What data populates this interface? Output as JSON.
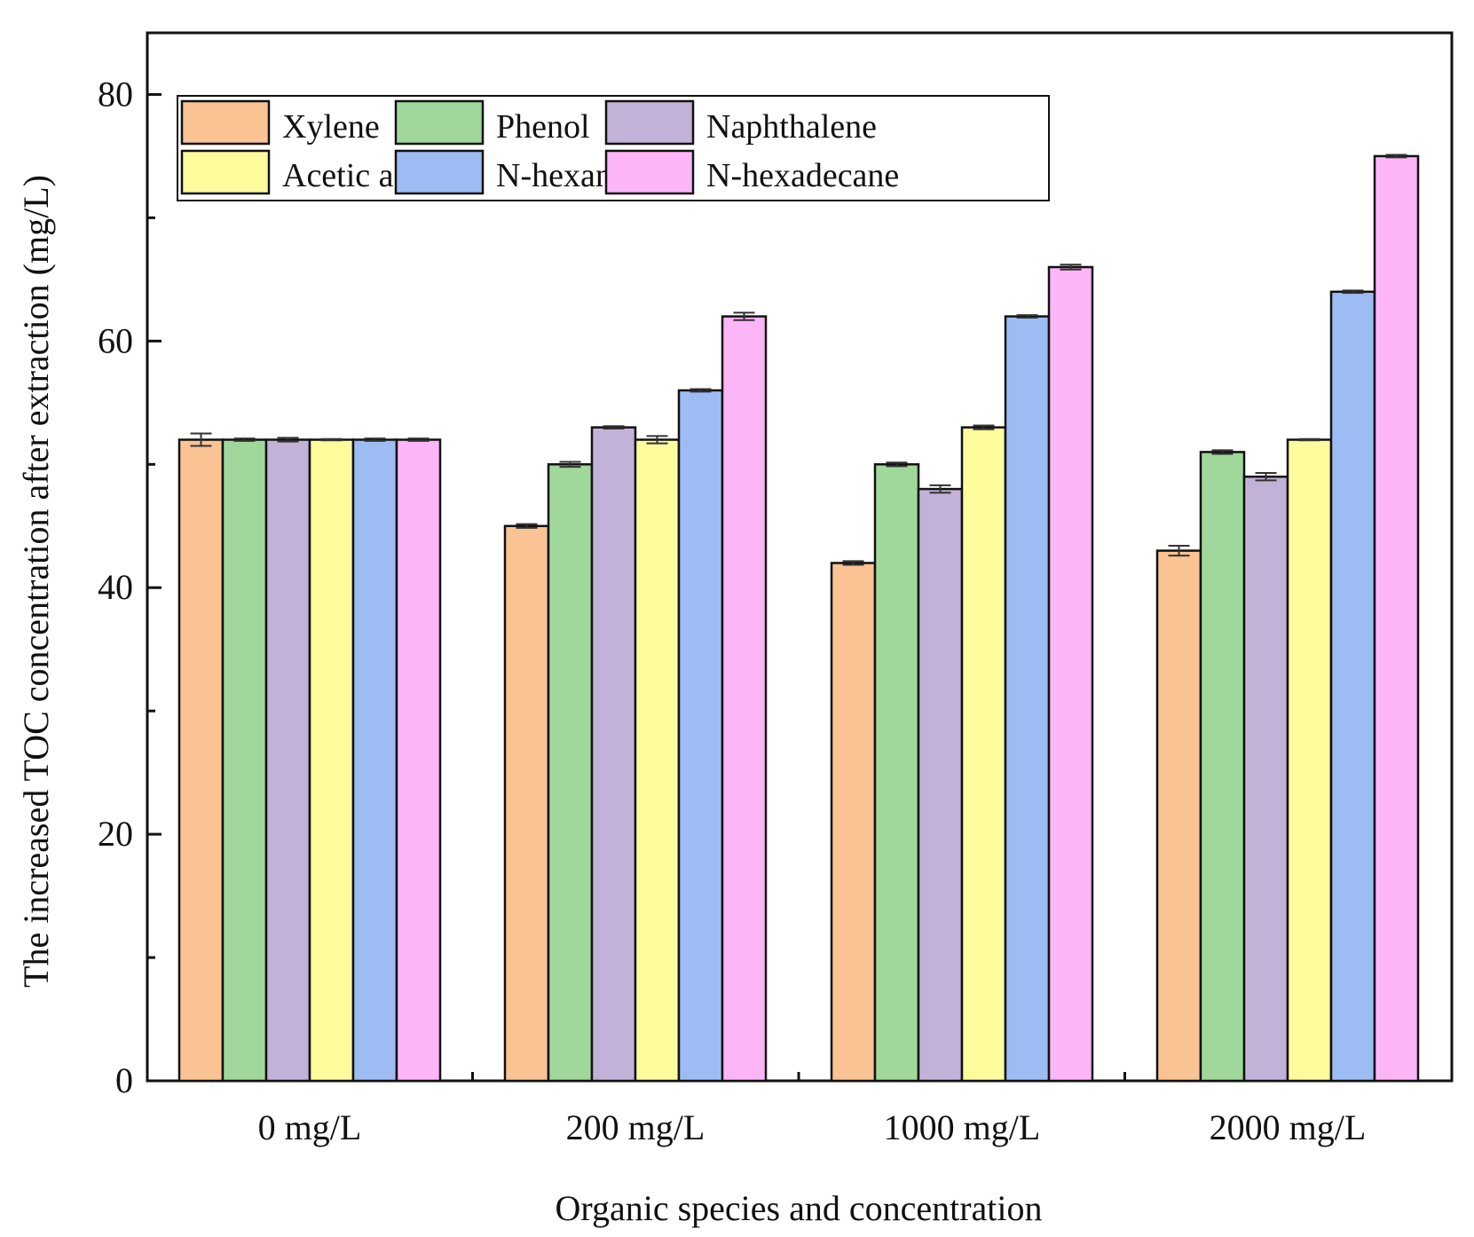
{
  "chart_data": {
    "type": "bar",
    "title": "",
    "xlabel": "Organic species and concentration",
    "ylabel": "The increased TOC concentration after extraction (mg/L)",
    "categories": [
      "0 mg/L",
      "200 mg/L",
      "1000 mg/L",
      "2000 mg/L"
    ],
    "ylim": [
      0,
      85
    ],
    "yticks": [
      0,
      20,
      40,
      60,
      80
    ],
    "grid": false,
    "legend_position": "top-left",
    "error_bars": true,
    "series": [
      {
        "name": "Xylene",
        "color": "#F9C393",
        "values": [
          52,
          45,
          42,
          43
        ],
        "errors": [
          0.5,
          0.15,
          0.15,
          0.4
        ]
      },
      {
        "name": "Phenol",
        "color": "#A0D89C",
        "values": [
          52,
          50,
          50,
          51
        ],
        "errors": [
          0.1,
          0.2,
          0.15,
          0.15
        ]
      },
      {
        "name": "Naphthalene",
        "color": "#C3B2D8",
        "values": [
          52,
          53,
          48,
          49
        ],
        "errors": [
          0.15,
          0.1,
          0.3,
          0.3
        ]
      },
      {
        "name": "Acetic acid",
        "color": "#FDFC9D",
        "values": [
          52,
          52,
          53,
          52
        ],
        "errors": [
          0.05,
          0.3,
          0.15,
          0.05
        ]
      },
      {
        "name": "N-hexane",
        "color": "#9EBCF4",
        "values": [
          52,
          56,
          62,
          64
        ],
        "errors": [
          0.1,
          0.1,
          0.1,
          0.1
        ]
      },
      {
        "name": "N-hexadecane",
        "color": "#FCB5F6",
        "values": [
          52,
          62,
          66,
          75
        ],
        "errors": [
          0.1,
          0.3,
          0.2,
          0.1
        ]
      }
    ]
  }
}
